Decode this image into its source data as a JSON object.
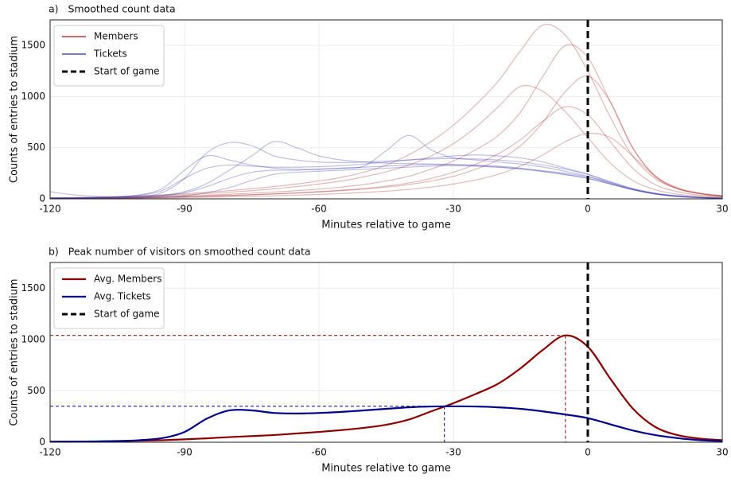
{
  "chart_data": [
    {
      "type": "line",
      "title": "a)   Smoothed count data",
      "xlabel": "Minutes relative to game",
      "ylabel": "Counts of entries to stadium",
      "xlim": [
        -120,
        30
      ],
      "ylim": [
        0,
        1750
      ],
      "xticks": [
        -120,
        -90,
        -60,
        -30,
        0,
        30
      ],
      "yticks": [
        0,
        500,
        1000,
        1500
      ],
      "grid": true,
      "legend": "upper left",
      "x": [
        -120,
        -115,
        -110,
        -105,
        -100,
        -95,
        -90,
        -85,
        -80,
        -75,
        -70,
        -65,
        -60,
        -55,
        -50,
        -45,
        -40,
        -35,
        -30,
        -25,
        -20,
        -15,
        -10,
        -5,
        0,
        5,
        10,
        15,
        20,
        25,
        30
      ],
      "vline": {
        "x": 0,
        "label": "Start of game",
        "color": "#000000"
      },
      "series": [
        {
          "name": "Members",
          "color": "#a31515",
          "opacity": 0.3,
          "lines": [
            [
              10,
              12,
              15,
              20,
              28,
              38,
              50,
              65,
              80,
              100,
              120,
              145,
              175,
              210,
              260,
              330,
              430,
              560,
              720,
              920,
              1150,
              1450,
              1700,
              1600,
              1250,
              800,
              420,
              200,
              100,
              55,
              30
            ],
            [
              5,
              6,
              8,
              10,
              14,
              20,
              28,
              36,
              45,
              55,
              66,
              80,
              95,
              115,
              140,
              175,
              220,
              290,
              370,
              480,
              620,
              850,
              1200,
              1500,
              1380,
              950,
              500,
              230,
              110,
              55,
              30
            ],
            [
              3,
              4,
              5,
              7,
              10,
              14,
              20,
              26,
              33,
              40,
              48,
              57,
              68,
              80,
              95,
              115,
              140,
              175,
              220,
              290,
              380,
              520,
              750,
              1050,
              1200,
              950,
              500,
              220,
              100,
              50,
              25
            ],
            [
              4,
              5,
              6,
              8,
              11,
              15,
              20,
              26,
              32,
              40,
              48,
              58,
              70,
              85,
              100,
              125,
              155,
              200,
              260,
              340,
              440,
              580,
              760,
              900,
              820,
              560,
              300,
              140,
              70,
              35,
              20
            ],
            [
              8,
              10,
              13,
              17,
              23,
              30,
              40,
              52,
              65,
              80,
              98,
              120,
              145,
              175,
              215,
              265,
              330,
              420,
              540,
              700,
              900,
              1100,
              1050,
              850,
              600,
              350,
              180,
              90,
              45,
              25,
              15
            ],
            [
              2,
              3,
              4,
              5,
              7,
              9,
              12,
              16,
              20,
              25,
              30,
              36,
              43,
              52,
              62,
              75,
              92,
              115,
              145,
              185,
              240,
              320,
              430,
              560,
              640,
              600,
              420,
              220,
              100,
              50,
              25
            ]
          ]
        },
        {
          "name": "Tickets",
          "color": "#2a2aa8",
          "opacity": 0.3,
          "lines": [
            [
              70,
              40,
              25,
              20,
              25,
              60,
              200,
              450,
              550,
              520,
              420,
              380,
              360,
              355,
              360,
              370,
              380,
              390,
              395,
              390,
              380,
              360,
              330,
              290,
              240,
              170,
              100,
              55,
              30,
              15,
              8
            ],
            [
              10,
              12,
              15,
              20,
              35,
              80,
              200,
              300,
              330,
              320,
              310,
              310,
              315,
              325,
              340,
              360,
              380,
              400,
              420,
              430,
              420,
              400,
              360,
              300,
              240,
              160,
              95,
              50,
              25,
              12,
              6
            ],
            [
              5,
              6,
              8,
              12,
              20,
              35,
              70,
              150,
              280,
              420,
              560,
              500,
              420,
              380,
              360,
              350,
              345,
              340,
              335,
              325,
              310,
              290,
              265,
              235,
              200,
              145,
              90,
              50,
              25,
              12,
              6
            ],
            [
              4,
              5,
              6,
              10,
              18,
              30,
              60,
              120,
              200,
              260,
              280,
              280,
              290,
              300,
              310,
              320,
              330,
              335,
              335,
              330,
              320,
              300,
              270,
              240,
              200,
              145,
              90,
              48,
              24,
              12,
              6
            ],
            [
              6,
              8,
              12,
              20,
              40,
              100,
              280,
              420,
              380,
              330,
              300,
              290,
              290,
              300,
              320,
              470,
              620,
              480,
              400,
              380,
              360,
              340,
              310,
              270,
              220,
              150,
              90,
              45,
              22,
              11,
              5
            ],
            [
              3,
              4,
              5,
              7,
              10,
              18,
              30,
              60,
              110,
              180,
              240,
              260,
              270,
              280,
              290,
              300,
              310,
              320,
              325,
              320,
              310,
              295,
              275,
              250,
              215,
              160,
              100,
              55,
              28,
              14,
              7
            ]
          ]
        }
      ]
    },
    {
      "type": "line",
      "title": "b)   Peak number of visitors on smoothed count data",
      "xlabel": "Minutes relative to game",
      "ylabel": "Counts of entries to stadium",
      "xlim": [
        -120,
        30
      ],
      "ylim": [
        0,
        1750
      ],
      "xticks": [
        -120,
        -90,
        -60,
        -30,
        0,
        30
      ],
      "yticks": [
        0,
        500,
        1000,
        1500
      ],
      "grid": true,
      "legend": "upper left",
      "x": [
        -120,
        -115,
        -110,
        -105,
        -100,
        -95,
        -90,
        -85,
        -80,
        -75,
        -70,
        -65,
        -60,
        -55,
        -50,
        -45,
        -40,
        -35,
        -30,
        -25,
        -20,
        -15,
        -10,
        -5,
        0,
        5,
        10,
        15,
        20,
        25,
        30
      ],
      "vline": {
        "x": 0,
        "label": "Start of game",
        "color": "#000000"
      },
      "series": [
        {
          "name": "Avg. Members",
          "color": "#8b0000",
          "opacity": 1,
          "values": [
            5,
            5,
            7,
            10,
            15,
            20,
            28,
            38,
            50,
            60,
            70,
            85,
            100,
            118,
            140,
            170,
            220,
            300,
            380,
            470,
            570,
            720,
            900,
            1040,
            930,
            620,
            330,
            150,
            70,
            35,
            20
          ],
          "peak": {
            "x": -5,
            "y": 1040
          }
        },
        {
          "name": "Avg. Tickets",
          "color": "#00008b",
          "opacity": 1,
          "values": [
            5,
            6,
            8,
            12,
            20,
            40,
            100,
            230,
            310,
            310,
            285,
            280,
            285,
            295,
            310,
            325,
            340,
            348,
            350,
            348,
            340,
            325,
            300,
            270,
            235,
            175,
            115,
            70,
            40,
            20,
            12
          ],
          "peak": {
            "x": -32,
            "y": 350
          }
        }
      ]
    }
  ]
}
